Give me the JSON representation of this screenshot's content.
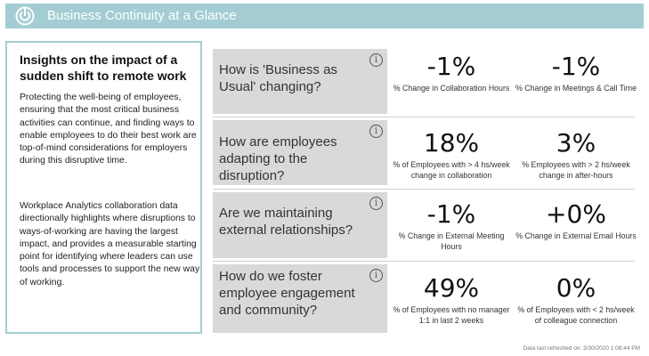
{
  "header": {
    "title": "Business Continuity at a Glance",
    "logo_icon": "power-ring-icon",
    "color": "#a3cdd3"
  },
  "insights": {
    "heading": "Insights on the impact of a sudden shift to remote work",
    "paragraph1": "Protecting the well-being of employees, ensuring that the most critical business activities can continue, and finding ways to enable employees to do their best work are top-of-mind considerations for employers during this disruptive time.",
    "paragraph2": "Workplace Analytics collaboration data directionally highlights where disruptions to ways-of-working are having the largest impact, and provides a measurable starting point for identifying where leaders can use tools and processes to support the new way of working."
  },
  "rows": [
    {
      "question": "How is 'Business as Usual' changing?",
      "info_icon": "info-icon",
      "metrics": [
        {
          "value": "-1%",
          "label": "% Change in Collaboration Hours"
        },
        {
          "value": "-1%",
          "label": "% Change in Meetings & Call Time"
        }
      ]
    },
    {
      "question": "How are employees adapting to the disruption?",
      "info_icon": "info-icon",
      "metrics": [
        {
          "value": "18%",
          "label": "% of Employees with > 4 hs/week change in collaboration"
        },
        {
          "value": "3%",
          "label": "% Employees with > 2 hs/week change in after-hours"
        }
      ]
    },
    {
      "question": "Are we maintaining external relationships?",
      "info_icon": "info-icon",
      "metrics": [
        {
          "value": "-1%",
          "label": "% Change in External Meeting Hours"
        },
        {
          "value": "+0%",
          "label": "% Change in External Email Hours"
        }
      ]
    },
    {
      "question": "How do we foster employee engagement and community?",
      "info_icon": "info-icon",
      "metrics": [
        {
          "value": "49%",
          "label": "% of Employees with no manager 1:1 in last 2 weeks"
        },
        {
          "value": "0%",
          "label": "% of Employees with < 2 hs/week of colleague connection"
        }
      ]
    }
  ],
  "footer": {
    "refresh_text": "Data last refreshed on: 3/30/2020 1:08:44 PM"
  }
}
